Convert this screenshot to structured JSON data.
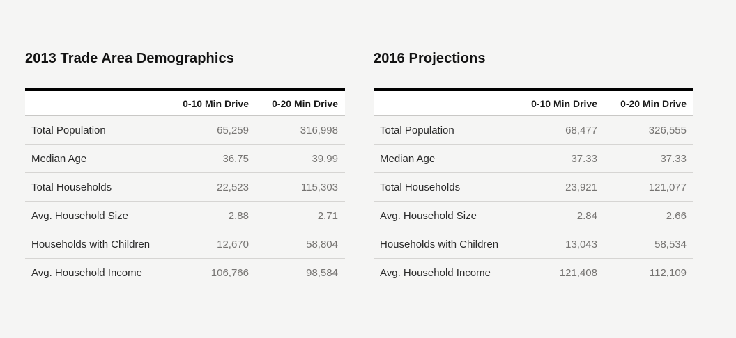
{
  "colors": {
    "page_background": "#f5f5f4",
    "header_row_background": "#ffffff",
    "table_top_border": "#000000",
    "title_text": "#121212",
    "label_text": "#2b2b2b",
    "value_text": "#767472",
    "row_separator": "#d6d5d3"
  },
  "chart_data": [
    {
      "type": "table",
      "title": "2013 Trade Area Demographics",
      "columns": [
        "",
        "0-10 Min Drive",
        "0-20 Min Drive"
      ],
      "rows": [
        [
          "Total Population",
          "65,259",
          "316,998"
        ],
        [
          "Median Age",
          "36.75",
          "39.99"
        ],
        [
          "Total Households",
          "22,523",
          "115,303"
        ],
        [
          "Avg. Household Size",
          "2.88",
          "2.71"
        ],
        [
          "Households with Children",
          "12,670",
          "58,804"
        ],
        [
          "Avg. Household Income",
          "106,766",
          "98,584"
        ]
      ]
    },
    {
      "type": "table",
      "title": "2016 Projections",
      "columns": [
        "",
        "0-10 Min Drive",
        "0-20 Min Drive"
      ],
      "rows": [
        [
          "Total Population",
          "68,477",
          "326,555"
        ],
        [
          "Median Age",
          "37.33",
          "37.33"
        ],
        [
          "Total Households",
          "23,921",
          "121,077"
        ],
        [
          "Avg. Household Size",
          "2.84",
          "2.66"
        ],
        [
          "Households with Children",
          "13,043",
          "58,534"
        ],
        [
          "Avg. Household Income",
          "121,408",
          "112,109"
        ]
      ]
    }
  ]
}
